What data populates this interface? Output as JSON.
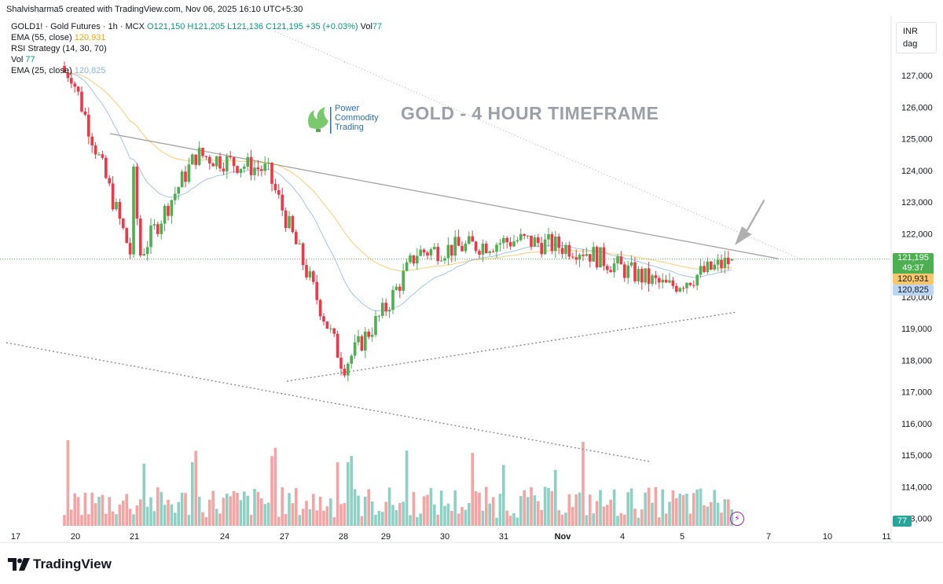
{
  "credit": "Shalvisharma5 created with TradingView.com, Nov 06, 2025 16:10 UTC+5:30",
  "legend": {
    "symbol": "GOLD1! · Gold Futures · 1h · MCX",
    "open": "O121,150",
    "high": "H121,205",
    "low": "L121,136",
    "close": "C121,195",
    "change": "+35 (+0.03%)",
    "vol_label": "Vol",
    "vol_value": "77",
    "ema55_label": "EMA (55, close)",
    "ema55_value": "120,931",
    "rsi_label": "RSI Strategy (14, 30, 70)",
    "vol2_label": "Vol",
    "vol2_value": "77",
    "ema25_label": "EMA (25, close)",
    "ema25_value": "120,825"
  },
  "currency": {
    "code": "INR",
    "unit": "dag"
  },
  "watermark": {
    "logo_line1": "Power",
    "logo_line2": "Commodity",
    "logo_line3": "Trading",
    "title": "GOLD - 4 HOUR TIMEFRAME"
  },
  "price_tags": {
    "last": "121,195",
    "countdown": "49:37",
    "ema55": "120,931",
    "ema25": "120,825",
    "volume": "77"
  },
  "brand": "TradingView",
  "colors": {
    "up": "#4caf50",
    "down": "#f23645",
    "ema55": "#f7a600",
    "ema25": "#88b7e5",
    "vol_up": "#8dd1c4",
    "vol_down": "#f5a3a3",
    "trendline": "#9e9e9e"
  },
  "chart_data": {
    "type": "candlestick",
    "x_ticks": [
      "17",
      "20",
      "21",
      "24",
      "27",
      "28",
      "29",
      "30",
      "31",
      "Nov",
      "4",
      "5",
      "7",
      "10",
      "11"
    ],
    "y_ticks": [
      "127,000",
      "126,000",
      "125,000",
      "124,000",
      "123,000",
      "122,000",
      "120,000",
      "119,000",
      "118,000",
      "117,000",
      "116,000",
      "115,000",
      "114,000",
      "113,000"
    ],
    "ylim": [
      112800,
      127500
    ],
    "close_path_approx": [
      {
        "x": "Oct 20",
        "close": 127100
      },
      {
        "x": "Oct 21",
        "close": 121000
      },
      {
        "x": "Oct 24",
        "close": 124500
      },
      {
        "x": "Oct 27",
        "close": 124000
      },
      {
        "x": "Oct 28",
        "close": 117800
      },
      {
        "x": "Oct 29",
        "close": 119600
      },
      {
        "x": "Oct 30",
        "close": 121400
      },
      {
        "x": "Oct 31",
        "close": 121800
      },
      {
        "x": "Nov 3",
        "close": 121500
      },
      {
        "x": "Nov 4",
        "close": 120800
      },
      {
        "x": "Nov 5",
        "close": 120300
      },
      {
        "x": "Nov 6",
        "close": 121195
      }
    ],
    "last_price": 121195,
    "ema55": 120931,
    "ema25": 120825,
    "volume_last": 77
  }
}
